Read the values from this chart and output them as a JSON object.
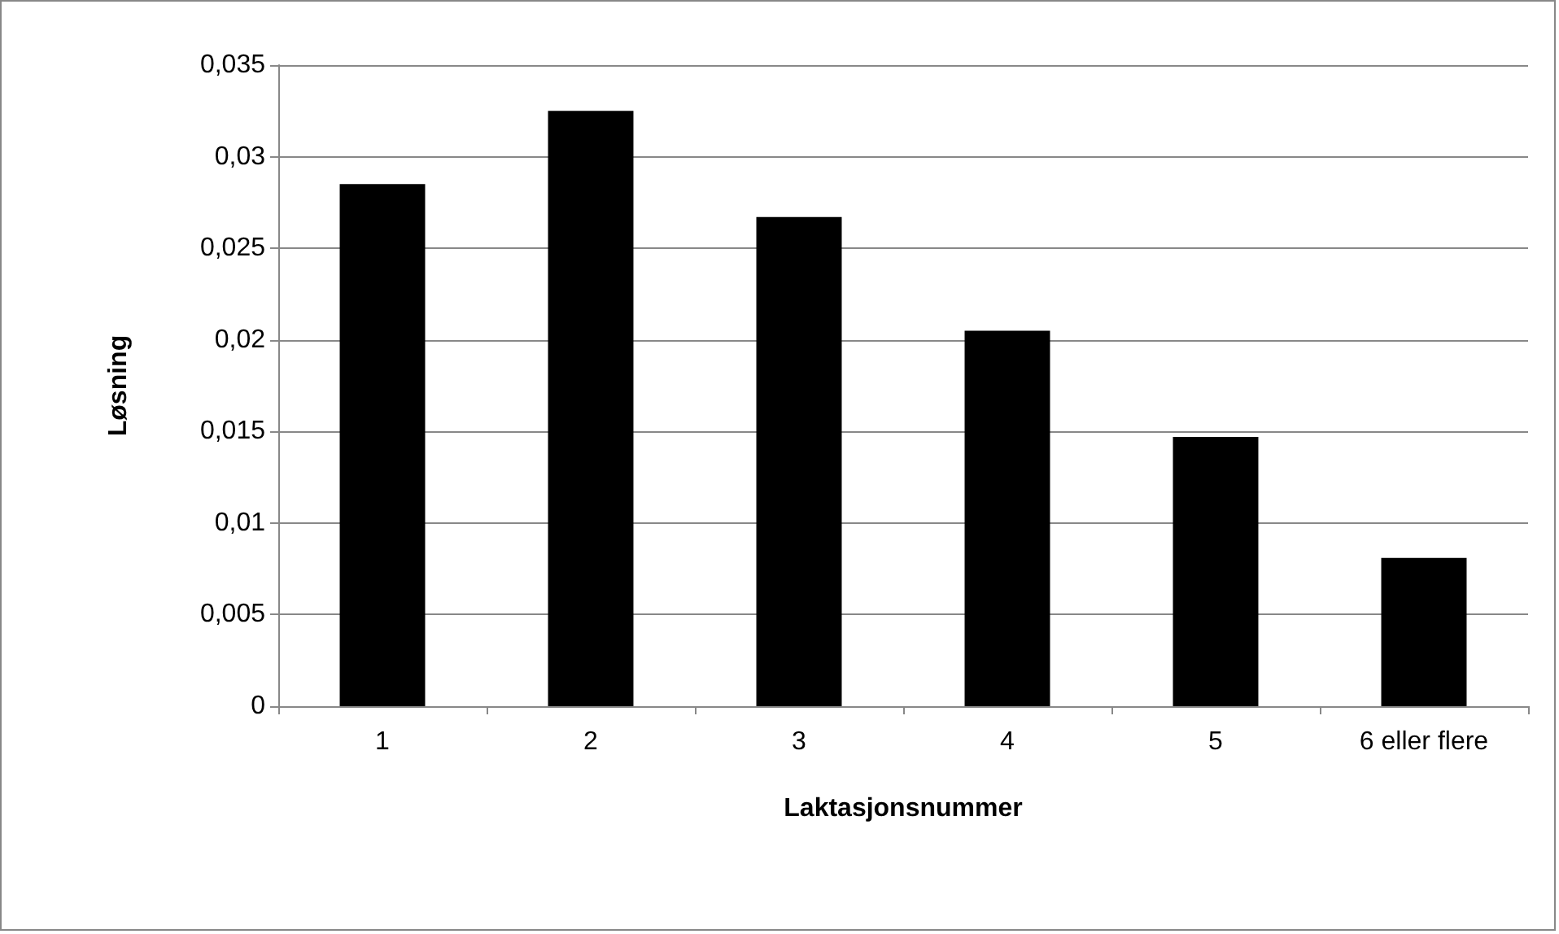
{
  "chart_data": {
    "type": "bar",
    "xlabel": "Laktasjonsnummer",
    "ylabel": "Løsning",
    "categories": [
      "1",
      "2",
      "3",
      "4",
      "5",
      "6 eller flere"
    ],
    "values": [
      0.0285,
      0.0325,
      0.0267,
      0.0205,
      0.0147,
      0.0081
    ],
    "color": "#000000",
    "ylim": [
      0,
      0.035
    ],
    "yticks": [
      {
        "value": 0,
        "label": "0"
      },
      {
        "value": 0.005,
        "label": "0,005"
      },
      {
        "value": 0.01,
        "label": "0,01"
      },
      {
        "value": 0.015,
        "label": "0,015"
      },
      {
        "value": 0.02,
        "label": "0,02"
      },
      {
        "value": 0.025,
        "label": "0,025"
      },
      {
        "value": 0.03,
        "label": "0,03"
      },
      {
        "value": 0.035,
        "label": "0,035"
      }
    ],
    "grid": "y"
  }
}
